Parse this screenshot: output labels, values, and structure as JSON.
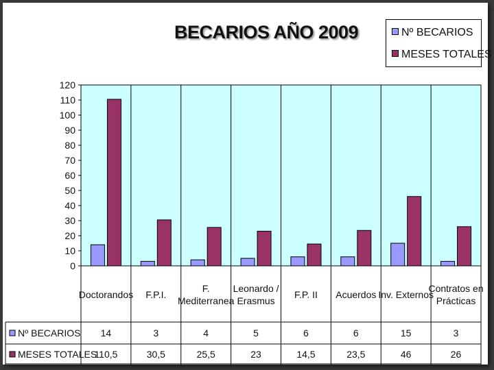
{
  "colors": {
    "plot_bg": "#ccffff",
    "becarios": "#9999ff",
    "meses": "#993366",
    "slide_bg": "#ffffff",
    "frame": "#3a3a3a"
  },
  "chart_data": {
    "type": "bar",
    "title": "BECARIOS AÑO 2009",
    "categories": [
      [
        "Doctorandos"
      ],
      [
        "F.P.I."
      ],
      [
        "F.",
        "Mediterranea"
      ],
      [
        "Leonardo /",
        "Erasmus"
      ],
      [
        "F.P. II"
      ],
      [
        "Acuerdos"
      ],
      [
        "Inv. Externos"
      ],
      [
        "Contratos en",
        "Prácticas"
      ]
    ],
    "series": [
      {
        "name": "Nº BECARIOS",
        "values": [
          14,
          3,
          4,
          5,
          6,
          6,
          15,
          3
        ],
        "labels": [
          "14",
          "3",
          "4",
          "5",
          "6",
          "6",
          "15",
          "3"
        ]
      },
      {
        "name": "MESES TOTALES",
        "values": [
          110.5,
          30.5,
          25.5,
          23,
          14.5,
          23.5,
          46,
          26
        ],
        "labels": [
          "110,5",
          "30,5",
          "25,5",
          "23",
          "14,5",
          "23,5",
          "46",
          "26"
        ]
      }
    ],
    "ylim": [
      0,
      120
    ],
    "yticks": [
      0,
      10,
      20,
      30,
      40,
      50,
      60,
      70,
      80,
      90,
      100,
      110,
      120
    ],
    "grid": false,
    "legend": "top-right",
    "data_table": true
  }
}
